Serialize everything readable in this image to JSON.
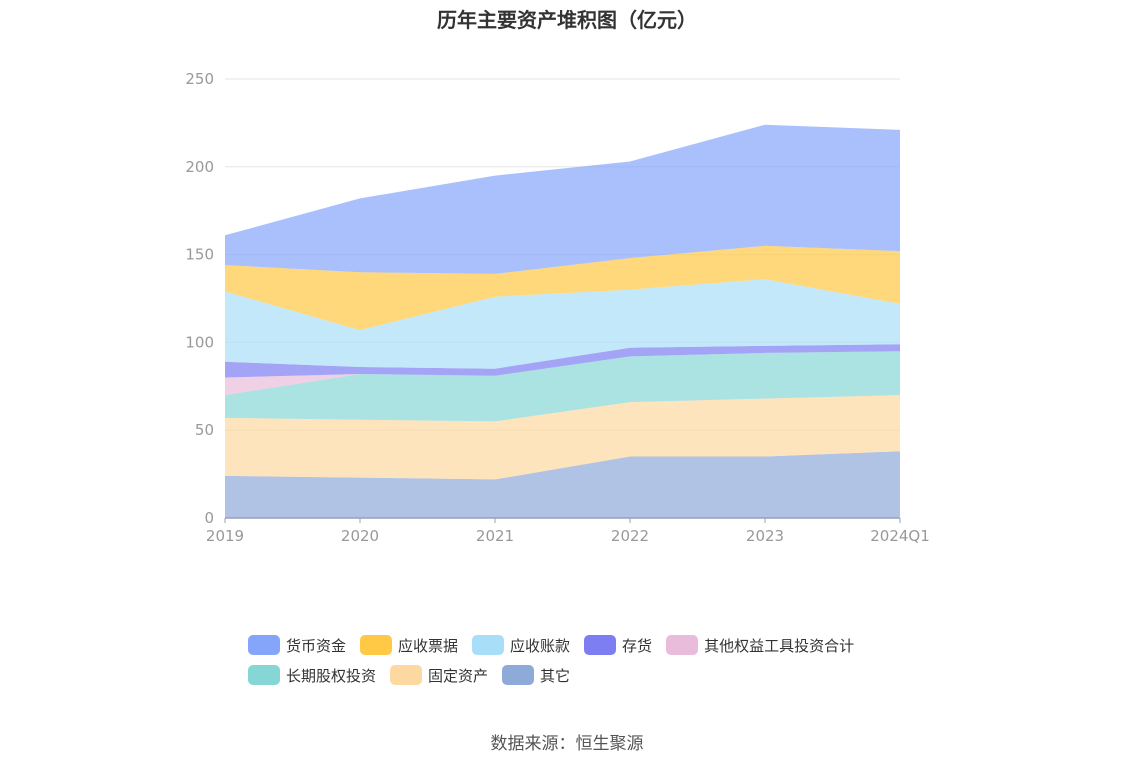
{
  "chart_data": {
    "type": "area",
    "stacked": true,
    "title": "历年主要资产堆积图（亿元）",
    "categories": [
      "2019",
      "2020",
      "2021",
      "2022",
      "2023",
      "2024Q1"
    ],
    "ylim": [
      0,
      250
    ],
    "yticks": [
      0,
      50,
      100,
      150,
      200,
      250
    ],
    "grid": true,
    "legend_position": "bottom",
    "series": [
      {
        "name": "其它",
        "color": "#8eaad8",
        "values": [
          24,
          23,
          22,
          35,
          35,
          38
        ]
      },
      {
        "name": "固定资产",
        "color": "#fdd8a0",
        "values": [
          33,
          33,
          33,
          31,
          33,
          32
        ]
      },
      {
        "name": "长期股权投资",
        "color": "#87d6d6",
        "values": [
          13,
          26,
          26,
          26,
          26,
          25
        ]
      },
      {
        "name": "其他权益工具投资合计",
        "color": "#e8bcda",
        "values": [
          10,
          0,
          0,
          0,
          0,
          0
        ]
      },
      {
        "name": "存货",
        "color": "#7d7ef2",
        "values": [
          9,
          4,
          4,
          5,
          4,
          4
        ]
      },
      {
        "name": "应收账款",
        "color": "#a8def8",
        "values": [
          40,
          21,
          41,
          33,
          38,
          23
        ]
      },
      {
        "name": "应收票据",
        "color": "#ffc845",
        "values": [
          15,
          33,
          13,
          18,
          19,
          30
        ]
      },
      {
        "name": "货币资金",
        "color": "#85a5fb",
        "values": [
          17,
          42,
          56,
          55,
          69,
          69
        ]
      }
    ]
  },
  "legend": {
    "row1": [
      {
        "label": "货币资金",
        "color": "#85a5fb"
      },
      {
        "label": "应收票据",
        "color": "#ffc845"
      },
      {
        "label": "应收账款",
        "color": "#a8def8"
      },
      {
        "label": "存货",
        "color": "#7d7ef2"
      },
      {
        "label": "其他权益工具投资合计",
        "color": "#e8bcda"
      }
    ],
    "row2": [
      {
        "label": "长期股权投资",
        "color": "#87d6d6"
      },
      {
        "label": "固定资产",
        "color": "#fdd8a0"
      },
      {
        "label": "其它",
        "color": "#8eaad8"
      }
    ]
  },
  "source": "数据来源：恒生聚源"
}
